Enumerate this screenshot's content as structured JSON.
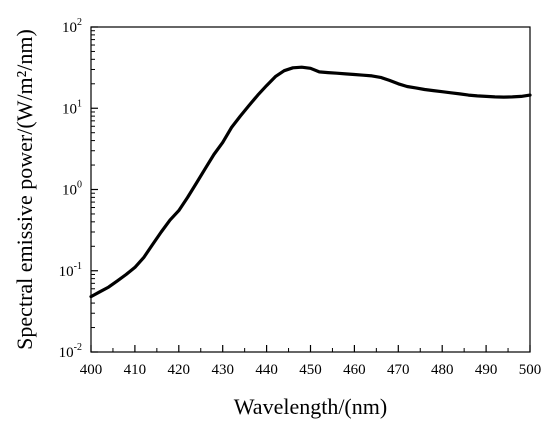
{
  "chart_data": {
    "type": "line",
    "xlabel": "Wavelength/(nm)",
    "ylabel": "Spectral emissive power/(W/m²/nm)",
    "xlim": [
      400,
      500
    ],
    "ylim": [
      0.01,
      100
    ],
    "yscale": "log",
    "grid": false,
    "x_ticks": [
      400,
      410,
      420,
      430,
      440,
      450,
      460,
      470,
      480,
      490,
      500
    ],
    "y_ticks": [
      {
        "value": 0.01,
        "base": "10",
        "exp": "-2"
      },
      {
        "value": 0.1,
        "base": "10",
        "exp": "-1"
      },
      {
        "value": 1,
        "base": "10",
        "exp": "0"
      },
      {
        "value": 10,
        "base": "10",
        "exp": "1"
      },
      {
        "value": 100,
        "base": "10",
        "exp": "2"
      }
    ],
    "series": [
      {
        "color": "#000000",
        "x": [
          400,
          402,
          404,
          406,
          408,
          410,
          412,
          414,
          416,
          418,
          420,
          422,
          424,
          426,
          428,
          430,
          432,
          434,
          436,
          438,
          440,
          442,
          444,
          446,
          448,
          450,
          452,
          454,
          456,
          458,
          460,
          462,
          464,
          466,
          468,
          470,
          472,
          474,
          476,
          478,
          480,
          482,
          484,
          486,
          488,
          490,
          492,
          494,
          496,
          498,
          500
        ],
        "y": [
          0.048,
          0.055,
          0.063,
          0.075,
          0.09,
          0.11,
          0.145,
          0.21,
          0.3,
          0.42,
          0.55,
          0.8,
          1.2,
          1.8,
          2.7,
          3.8,
          5.8,
          8.0,
          10.8,
          14.5,
          19.0,
          24.5,
          29.0,
          31.5,
          32.0,
          31.0,
          28.0,
          27.5,
          27.0,
          26.5,
          26.0,
          25.5,
          25.0,
          24.0,
          22.0,
          20.0,
          18.5,
          17.8,
          17.0,
          16.5,
          16.0,
          15.5,
          15.0,
          14.5,
          14.2,
          14.0,
          13.8,
          13.7,
          13.8,
          14.0,
          14.5
        ]
      }
    ]
  }
}
